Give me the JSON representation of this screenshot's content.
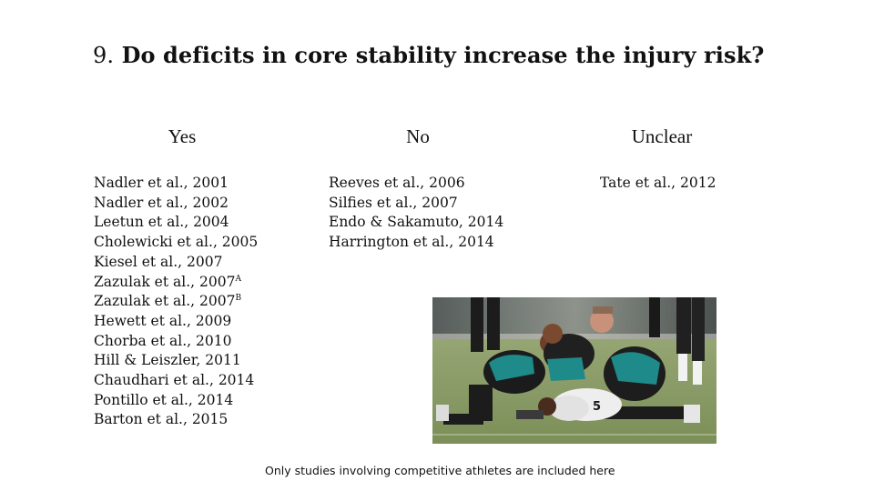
{
  "slide": {
    "title_number": "9.",
    "title_text": "Do deficits in core stability increase the injury risk?"
  },
  "columns": [
    {
      "heading": "Yes",
      "studies": [
        {
          "text": "Nadler et al., 2001"
        },
        {
          "text": "Nadler et al., 2002"
        },
        {
          "text": "Leetun et al., 2004"
        },
        {
          "text": "Cholewicki et al., 2005"
        },
        {
          "text": "Kiesel et al., 2007"
        },
        {
          "text": "Zazulak et al., 2007",
          "sup": "A"
        },
        {
          "text": "Zazulak et al., 2007",
          "sup": "B"
        },
        {
          "text": "Hewett et al., 2009"
        },
        {
          "text": "Chorba et al., 2010"
        },
        {
          "text": "Hill & Leiszler, 2011"
        },
        {
          "text": "Chaudhari et al., 2014"
        },
        {
          "text": "Pontillo et al., 2014"
        },
        {
          "text": "Barton et al., 2015"
        }
      ]
    },
    {
      "heading": "No",
      "studies": [
        {
          "text": "Reeves et al., 2006"
        },
        {
          "text": "Silfies et al., 2007"
        },
        {
          "text": "Endo & Sakamuto, 2014"
        },
        {
          "text": "Harrington et al., 2014"
        }
      ]
    },
    {
      "heading": "Unclear",
      "studies": [
        {
          "text": "Tate et al., 2012"
        }
      ]
    }
  ],
  "footnote": "Only studies involving competitive athletes are included here",
  "photo_jersey_number": "5"
}
